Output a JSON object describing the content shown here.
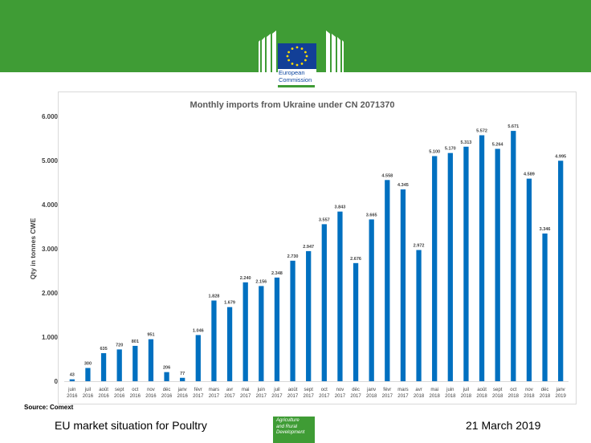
{
  "header": {
    "logo_line1": "European",
    "logo_line2": "Commission"
  },
  "source": "Source: Comext",
  "footer": {
    "left": "EU market situation for Poultry",
    "right": "21 March 2019",
    "agri_line1": "Agriculture",
    "agri_line2": "and Rural",
    "agri_line3": "Development"
  },
  "colors": {
    "banner": "#3f9c35",
    "bar": "#0070c0"
  },
  "chart_data": {
    "type": "bar",
    "title": "Monthly imports from Ukraine under CN 2071370",
    "ylabel": "Qty in tonnes CWE",
    "xlabel": "",
    "ylim": [
      0,
      6000
    ],
    "yticks": [
      "0",
      "1.000",
      "2.000",
      "3.000",
      "4.000",
      "5.000",
      "6.000"
    ],
    "grid": false,
    "categories": [
      [
        "juin",
        "2016"
      ],
      [
        "juil",
        "2016"
      ],
      [
        "août",
        "2016"
      ],
      [
        "sept",
        "2016"
      ],
      [
        "oct",
        "2016"
      ],
      [
        "nov",
        "2016"
      ],
      [
        "déc",
        "2016"
      ],
      [
        "janv",
        "2016"
      ],
      [
        "févr",
        "2017"
      ],
      [
        "mars",
        "2017"
      ],
      [
        "avr",
        "2017"
      ],
      [
        "mai",
        "2017"
      ],
      [
        "juin",
        "2017"
      ],
      [
        "juil",
        "2017"
      ],
      [
        "août",
        "2017"
      ],
      [
        "sept",
        "2017"
      ],
      [
        "oct",
        "2017"
      ],
      [
        "nov",
        "2017"
      ],
      [
        "déc",
        "2017"
      ],
      [
        "janv",
        "2018"
      ],
      [
        "févr",
        "2017"
      ],
      [
        "mars",
        "2017"
      ],
      [
        "avr",
        "2018"
      ],
      [
        "mai",
        "2018"
      ],
      [
        "juin",
        "2018"
      ],
      [
        "juil",
        "2018"
      ],
      [
        "août",
        "2018"
      ],
      [
        "sept",
        "2018"
      ],
      [
        "oct",
        "2018"
      ],
      [
        "nov",
        "2018"
      ],
      [
        "déc",
        "2018"
      ],
      [
        "janv",
        "2019"
      ]
    ],
    "values": [
      43,
      300,
      635,
      720,
      801,
      951,
      206,
      77,
      1046,
      1828,
      1679,
      2240,
      2156,
      2348,
      2730,
      2947,
      3557,
      3843,
      2676,
      3665,
      4558,
      4345,
      2972,
      5100,
      5170,
      5313,
      5572,
      5264,
      5671,
      4589,
      3346,
      4995
    ],
    "labels": [
      "43",
      "300",
      "635",
      "720",
      "801",
      "951",
      "206",
      "77",
      "1.046",
      "1.828",
      "1.679",
      "2.240",
      "2.156",
      "2.348",
      "2.730",
      "2.947",
      "3.557",
      "3.843",
      "2.676",
      "3.665",
      "4.558",
      "4.345",
      "2.972",
      "5.100",
      "5.170",
      "5.313",
      "5.572",
      "5.264",
      "5.671",
      "4.589",
      "3.346",
      "4.995"
    ]
  }
}
